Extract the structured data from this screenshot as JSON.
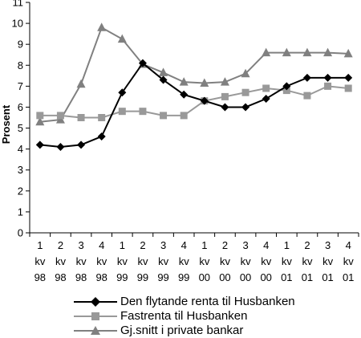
{
  "chart_data": {
    "type": "line",
    "ylabel": "Prosent",
    "xlabel": "",
    "ylim": [
      0,
      11
    ],
    "yticks": [
      "0",
      "1",
      "2",
      "3",
      "4",
      "5",
      "6",
      "7",
      "8",
      "9",
      "10",
      "11"
    ],
    "grid": false,
    "legend_position": "bottom",
    "categories": [
      [
        "1",
        "kv",
        "98"
      ],
      [
        "2",
        "kv",
        "98"
      ],
      [
        "3",
        "kv",
        "98"
      ],
      [
        "4",
        "kv",
        "98"
      ],
      [
        "1",
        "kv",
        "99"
      ],
      [
        "2",
        "kv",
        "99"
      ],
      [
        "3",
        "kv",
        "99"
      ],
      [
        "4",
        "kv",
        "99"
      ],
      [
        "1",
        "kv",
        "00"
      ],
      [
        "2",
        "kv",
        "00"
      ],
      [
        "3",
        "kv",
        "00"
      ],
      [
        "4",
        "kv",
        "00"
      ],
      [
        "1",
        "kv",
        "01"
      ],
      [
        "2",
        "kv",
        "01"
      ],
      [
        "3",
        "kv",
        "01"
      ],
      [
        "4",
        "kv",
        "01"
      ]
    ],
    "series": [
      {
        "name": "Den flytande renta til Husbanken",
        "color": "#000000",
        "marker": "diamond",
        "values": [
          4.2,
          4.1,
          4.2,
          4.6,
          6.7,
          8.1,
          7.3,
          6.6,
          6.3,
          6.0,
          6.0,
          6.4,
          7.0,
          7.4,
          7.4,
          7.4
        ]
      },
      {
        "name": "Fastrenta til Husbanken",
        "color": "#999999",
        "marker": "square",
        "values": [
          5.6,
          5.6,
          5.5,
          5.5,
          5.8,
          5.8,
          5.6,
          5.6,
          6.3,
          6.5,
          6.7,
          6.9,
          6.8,
          6.55,
          7.0,
          6.9
        ]
      },
      {
        "name": "Gj.snitt i private bankar",
        "color": "#808080",
        "marker": "triangle",
        "values": [
          5.3,
          5.4,
          7.1,
          9.8,
          9.25,
          8.05,
          7.65,
          7.2,
          7.15,
          7.2,
          7.6,
          8.6,
          8.6,
          8.6,
          8.6,
          8.55
        ]
      }
    ]
  }
}
